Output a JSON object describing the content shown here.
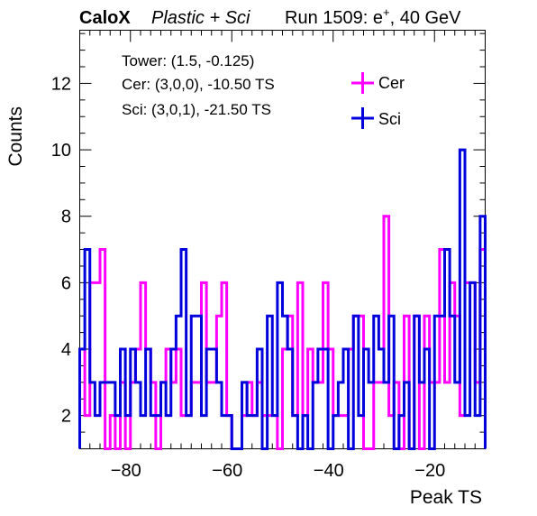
{
  "header": {
    "experiment": "CaloX",
    "config": "Plastic + Sci",
    "run": "Run 1509: e",
    "run_sup": "+",
    "energy": ", 40 GeV"
  },
  "info_lines": [
    "Tower: (1.5, -0.125)",
    "Cer: (3,0,0), -10.50 TS",
    "Sci: (3,0,1), -21.50 TS"
  ],
  "colors": {
    "Cer": "#ff00ff",
    "Sci": "#0000dd"
  },
  "chart_data": {
    "type": "histogram",
    "xlabel": "Peak TS",
    "ylabel": "Counts",
    "xlim": [
      -90,
      -10
    ],
    "ylim": [
      1,
      13.6
    ],
    "x_ticks": [
      -80,
      -60,
      -40,
      -20
    ],
    "y_ticks": [
      2,
      4,
      6,
      8,
      10,
      12
    ],
    "bin_width": 1,
    "bin_start": -90,
    "legend_position": "top-right",
    "series": [
      {
        "name": "Cer",
        "values": [
          4,
          2,
          6,
          6,
          7,
          1,
          2,
          1,
          3,
          1,
          3,
          4,
          6,
          4,
          3,
          1,
          3,
          4,
          3,
          4,
          2,
          2,
          3,
          3,
          6,
          3,
          3,
          5,
          6,
          2,
          1,
          1,
          2,
          3,
          2,
          3,
          2,
          2,
          2,
          1,
          4,
          5,
          2,
          6,
          2,
          4,
          3,
          3,
          6,
          4,
          2,
          2,
          2,
          4,
          5,
          5,
          1,
          1,
          3,
          3,
          8,
          2,
          3,
          1,
          5,
          1,
          5,
          1,
          5,
          3,
          3,
          7,
          3,
          6,
          5,
          2,
          6,
          6,
          3,
          7
        ]
      },
      {
        "name": "Sci",
        "values": [
          4,
          7,
          3,
          2,
          3,
          3,
          3,
          2,
          4,
          2,
          4,
          3,
          2,
          4,
          2,
          2,
          3,
          2,
          4,
          5,
          7,
          2,
          5,
          5,
          2,
          4,
          4,
          3,
          2,
          2,
          1,
          1,
          3,
          2,
          2,
          4,
          1,
          5,
          2,
          6,
          5,
          4,
          2,
          1,
          2,
          1,
          3,
          4,
          4,
          1,
          2,
          3,
          4,
          1,
          5,
          2,
          4,
          3,
          5,
          4,
          3,
          5,
          1,
          2,
          3,
          1,
          5,
          3,
          4,
          1,
          5,
          5,
          7,
          5,
          3,
          10,
          2,
          6,
          2,
          8
        ]
      }
    ]
  }
}
